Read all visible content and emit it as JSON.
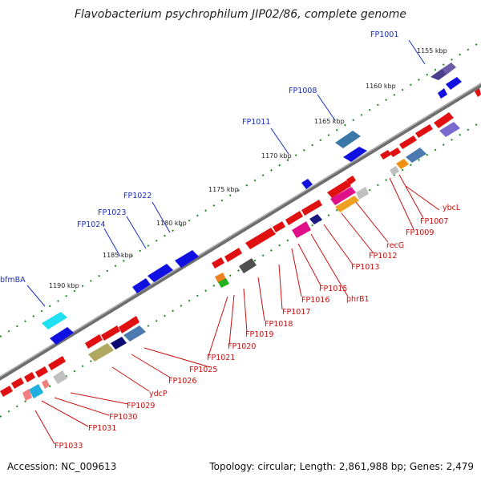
{
  "title": "Flavobacterium psychrophilum JIP02/86, complete genome",
  "footer": {
    "accession": "Accession: NC_009613",
    "info": "Topology: circular; Length: 2,861,988 bp; Genes: 2,479"
  },
  "tick_labels": [
    "1155 kbp",
    "1160 kbp",
    "1165 kbp",
    "1170 kbp",
    "1175 kbp",
    "1180 kbp",
    "1185 kbp",
    "1190 kbp"
  ],
  "upper_labels": [
    "FP1001",
    "FP1008",
    "FP1011",
    "FP1022",
    "FP1023",
    "FP1024",
    "bfmBA"
  ],
  "lower_labels": [
    "ybcL",
    "FP1007",
    "FP1009",
    "recG",
    "FP1012",
    "FP1013",
    "phrB1",
    "FP1015",
    "FP1016",
    "FP1017",
    "FP1018",
    "FP1019",
    "FP1020",
    "FP1021",
    "FP1025",
    "FP1026",
    "ydcP",
    "FP1029",
    "FP1030",
    "FP1031",
    "FP1033"
  ],
  "colors": {
    "backbone": "#7a7a7a",
    "tick_dots": "#1a8a1a",
    "forward_gene": "#1010e0",
    "reverse_gene": "#e01010",
    "upper_label": "#1a2db8",
    "lower_label": "#c81010"
  }
}
